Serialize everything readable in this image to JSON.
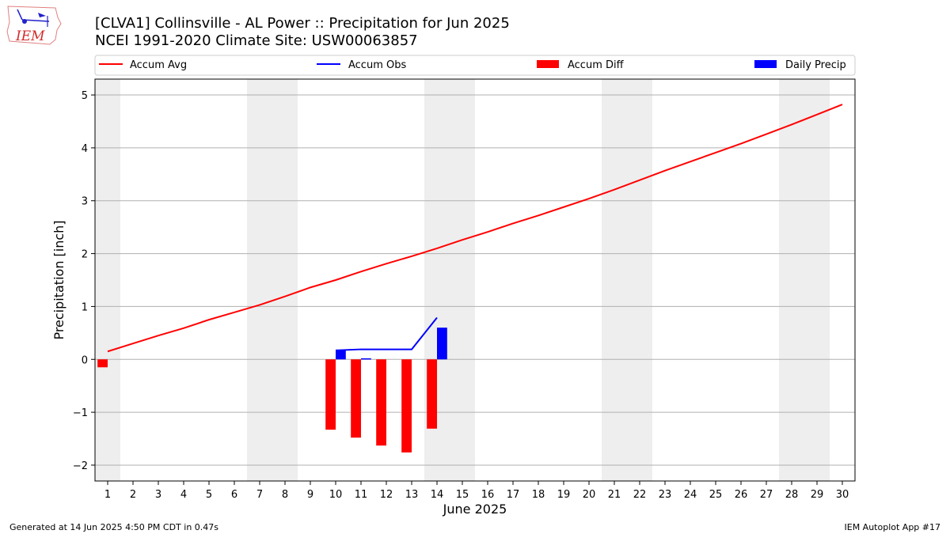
{
  "header": {
    "title_line1": "[CLVA1] Collinsville - AL Power :: Precipitation for Jun 2025",
    "title_line2": "NCEI 1991-2020 Climate Site: USW00063857"
  },
  "logo": {
    "text": "IEM"
  },
  "footer": {
    "left": "Generated at 14 Jun 2025 4:50 PM CDT in 0.47s",
    "right": "IEM Autoplot App #17"
  },
  "colors": {
    "accum_avg": "#ff0000",
    "accum_obs": "#0000ff",
    "accum_diff": "#ff0000",
    "daily_precip": "#0000ff",
    "weekend_band": "#eeeeee",
    "grid": "#b0b0b0"
  },
  "chart_data": {
    "type": "bar",
    "xlabel": "June 2025",
    "ylabel": "Precipitation [inch]",
    "xlim": [
      0.5,
      30.5
    ],
    "ylim": [
      -2.3,
      5.3
    ],
    "x_ticks": [
      1,
      2,
      3,
      4,
      5,
      6,
      7,
      8,
      9,
      10,
      11,
      12,
      13,
      14,
      15,
      16,
      17,
      18,
      19,
      20,
      21,
      22,
      23,
      24,
      25,
      26,
      27,
      28,
      29,
      30
    ],
    "y_ticks": [
      -2,
      -1,
      0,
      1,
      2,
      3,
      4,
      5
    ],
    "y_tick_labels": [
      "−2",
      "−1",
      "0",
      "1",
      "2",
      "3",
      "4",
      "5"
    ],
    "grid": "horizontal",
    "legend_placement": "top",
    "weekend_days": [
      1,
      7,
      8,
      14,
      15,
      21,
      22,
      28,
      29
    ],
    "series": [
      {
        "name": "Accum Avg",
        "kind": "line",
        "x": [
          1,
          2,
          3,
          4,
          5,
          6,
          7,
          8,
          9,
          10,
          11,
          12,
          13,
          14,
          15,
          16,
          17,
          18,
          19,
          20,
          21,
          22,
          23,
          24,
          25,
          26,
          27,
          28,
          29,
          30
        ],
        "values": [
          0.15,
          0.3,
          0.45,
          0.59,
          0.75,
          0.89,
          1.03,
          1.19,
          1.36,
          1.5,
          1.66,
          1.81,
          1.95,
          2.1,
          2.26,
          2.41,
          2.57,
          2.72,
          2.88,
          3.04,
          3.21,
          3.39,
          3.57,
          3.74,
          3.91,
          4.08,
          4.26,
          4.44,
          4.63,
          4.82
        ]
      },
      {
        "name": "Accum Obs",
        "kind": "line",
        "x": [
          10,
          11,
          12,
          13,
          14
        ],
        "values": [
          0.17,
          0.19,
          0.19,
          0.19,
          0.79
        ]
      },
      {
        "name": "Accum Diff",
        "kind": "bar",
        "x": [
          1,
          10,
          11,
          12,
          13,
          14
        ],
        "values": [
          -0.15,
          -1.33,
          -1.48,
          -1.63,
          -1.76,
          -1.31
        ]
      },
      {
        "name": "Daily Precip",
        "kind": "bar",
        "x": [
          10,
          11,
          14
        ],
        "values": [
          0.17,
          0.02,
          0.6
        ]
      }
    ]
  }
}
